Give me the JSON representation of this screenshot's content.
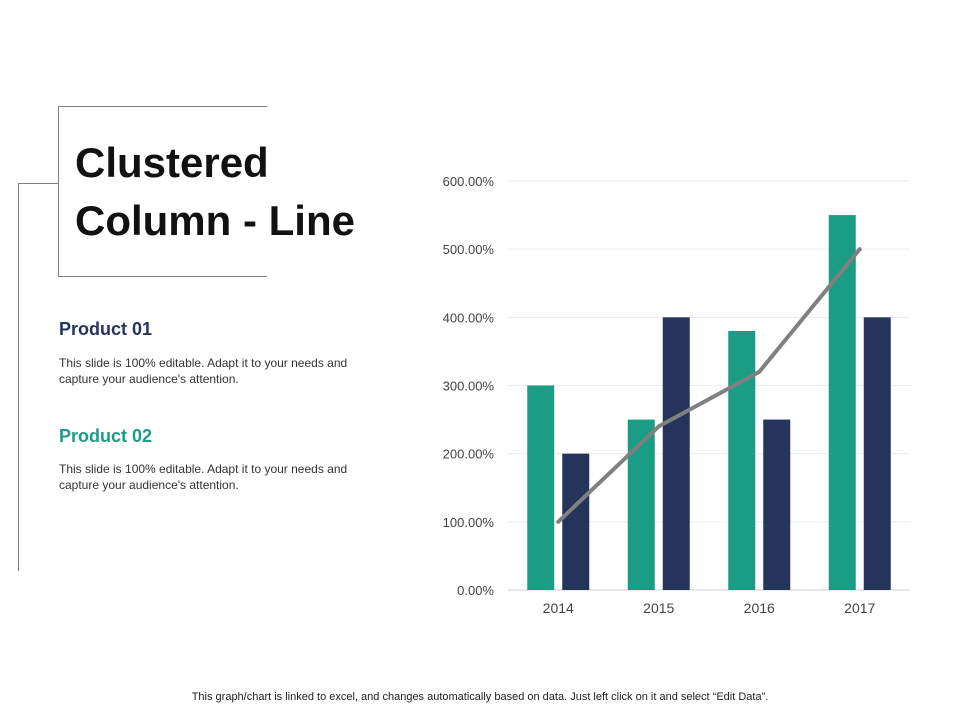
{
  "title": {
    "line1": "Clustered",
    "line2": "Column - Line"
  },
  "products": [
    {
      "name": "Product 01",
      "description": "This slide is 100% editable. Adapt it to your needs and capture your audience's attention.",
      "color": "#24345a"
    },
    {
      "name": "Product 02",
      "description": "This slide is 100% editable. Adapt it to your needs and capture your audience's attention.",
      "color": "#1b9c85"
    }
  ],
  "footnote": "This graph/chart is linked to excel, and changes automatically based on data. Just left click on it and select “Edit Data”.",
  "chart_data": {
    "type": "bar",
    "categories": [
      "2014",
      "2015",
      "2016",
      "2017"
    ],
    "series": [
      {
        "type": "bar",
        "color": "#1b9c85",
        "values": [
          300,
          250,
          380,
          550
        ]
      },
      {
        "type": "bar",
        "color": "#24345a",
        "values": [
          200,
          400,
          250,
          400
        ]
      },
      {
        "type": "line",
        "color": "#808080",
        "values": [
          100,
          240,
          320,
          500
        ]
      }
    ],
    "ylim": [
      0,
      600
    ],
    "yticks": [
      0,
      100,
      200,
      300,
      400,
      500,
      600
    ],
    "ytick_labels": [
      "0.00%",
      "100.00%",
      "200.00%",
      "300.00%",
      "400.00%",
      "500.00%",
      "600.00%"
    ],
    "grid": true,
    "legend": "none"
  }
}
